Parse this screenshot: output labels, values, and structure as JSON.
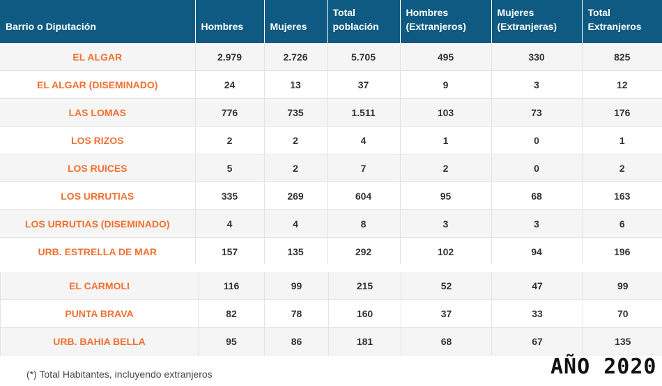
{
  "headers": [
    [
      "Barrio o Diputación"
    ],
    [
      "Hombres"
    ],
    [
      "Mujeres"
    ],
    [
      "Total",
      "población"
    ],
    [
      "Hombres",
      "(Extranjeros)"
    ],
    [
      "Mujeres",
      "(Extranjeras)"
    ],
    [
      "Total",
      "Extranjeros"
    ]
  ],
  "rows_top": [
    [
      "EL ALGAR",
      "2.979",
      "2.726",
      "5.705",
      "495",
      "330",
      "825"
    ],
    [
      "EL ALGAR (DISEMINADO)",
      "24",
      "13",
      "37",
      "9",
      "3",
      "12"
    ],
    [
      "LAS LOMAS",
      "776",
      "735",
      "1.511",
      "103",
      "73",
      "176"
    ],
    [
      "LOS RIZOS",
      "2",
      "2",
      "4",
      "1",
      "0",
      "1"
    ],
    [
      "LOS RUICES",
      "5",
      "2",
      "7",
      "2",
      "0",
      "2"
    ],
    [
      "LOS URRUTIAS",
      "335",
      "269",
      "604",
      "95",
      "68",
      "163"
    ],
    [
      "LOS URRUTIAS (DISEMINADO)",
      "4",
      "4",
      "8",
      "3",
      "3",
      "6"
    ],
    [
      "URB. ESTRELLA DE MAR",
      "157",
      "135",
      "292",
      "102",
      "94",
      "196"
    ]
  ],
  "rows_bottom": [
    [
      "EL CARMOLI",
      "116",
      "99",
      "215",
      "52",
      "47",
      "99"
    ],
    [
      "PUNTA BRAVA",
      "82",
      "78",
      "160",
      "37",
      "33",
      "70"
    ],
    [
      "URB. BAHIA BELLA",
      "95",
      "86",
      "181",
      "68",
      "67",
      "135"
    ]
  ],
  "footnote": "(*) Total Habitantes, incluyendo extranjeros",
  "year_label": "AÑO 2020",
  "colors": {
    "header_bg": "#0e5a82",
    "name_text": "#f07030"
  }
}
